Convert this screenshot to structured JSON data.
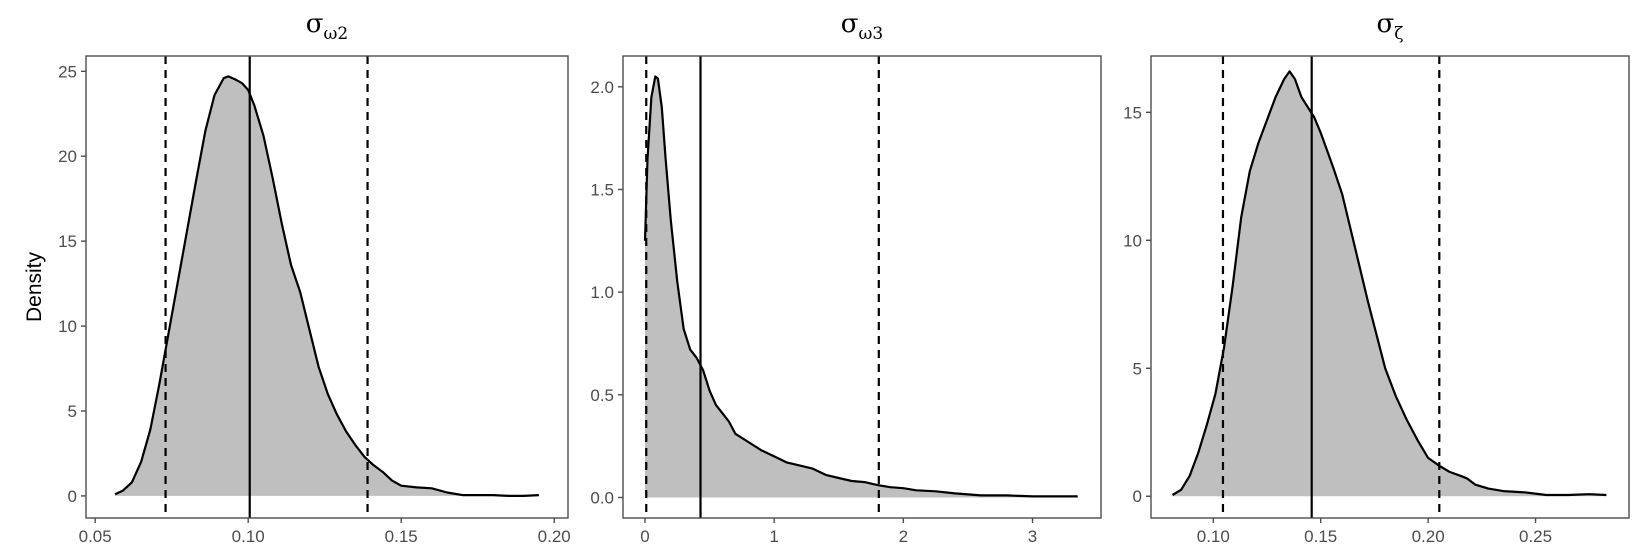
{
  "chart_data": [
    {
      "type": "area",
      "title": "σ_ω2",
      "title_main": "σ",
      "title_sub": "ω2",
      "xlabel": "",
      "ylabel": "Density",
      "xlim": [
        0.047,
        0.2045
      ],
      "ylim": [
        -1.3,
        25.9
      ],
      "xticks": [
        0.05,
        0.1,
        0.15,
        0.2
      ],
      "xtick_labels": [
        "0.05",
        "0.10",
        "0.15",
        "0.20"
      ],
      "yticks": [
        0,
        5,
        10,
        15,
        20,
        25
      ],
      "ytick_labels": [
        "0",
        "5",
        "10",
        "15",
        "20",
        "25"
      ],
      "vlines": {
        "lower_dashed": 0.073,
        "median_solid": 0.1005,
        "upper_dashed": 0.139
      },
      "x": [
        0.0565,
        0.059,
        0.062,
        0.065,
        0.068,
        0.071,
        0.074,
        0.077,
        0.08,
        0.083,
        0.086,
        0.089,
        0.092,
        0.0935,
        0.096,
        0.098,
        0.1,
        0.102,
        0.105,
        0.108,
        0.111,
        0.114,
        0.117,
        0.12,
        0.123,
        0.126,
        0.129,
        0.132,
        0.135,
        0.138,
        0.141,
        0.144,
        0.147,
        0.15,
        0.155,
        0.16,
        0.165,
        0.17,
        0.175,
        0.18,
        0.185,
        0.19,
        0.195
      ],
      "y": [
        0.1,
        0.3,
        0.8,
        2.0,
        3.9,
        6.6,
        9.6,
        12.6,
        15.6,
        18.6,
        21.5,
        23.6,
        24.6,
        24.7,
        24.5,
        24.3,
        23.9,
        23.0,
        21.2,
        18.7,
        16.0,
        13.6,
        12.0,
        9.8,
        7.6,
        6.0,
        4.8,
        3.8,
        3.0,
        2.3,
        1.8,
        1.4,
        0.9,
        0.6,
        0.5,
        0.45,
        0.2,
        0.05,
        0.05,
        0.05,
        0.0,
        0.0,
        0.05
      ]
    },
    {
      "type": "area",
      "title": "σ_ω3",
      "title_main": "σ",
      "title_sub": "ω3",
      "xlabel": "",
      "ylabel": "",
      "xlim": [
        -0.17,
        3.53
      ],
      "ylim": [
        -0.1,
        2.15
      ],
      "xticks": [
        0,
        1,
        2,
        3
      ],
      "xtick_labels": [
        "0",
        "1",
        "2",
        "3"
      ],
      "yticks": [
        0.0,
        0.5,
        1.0,
        1.5,
        2.0
      ],
      "ytick_labels": [
        "0.0",
        "0.5",
        "1.0",
        "1.5",
        "2.0"
      ],
      "vlines": {
        "lower_dashed": 0.01,
        "median_solid": 0.43,
        "upper_dashed": 1.81
      },
      "x": [
        0.0,
        0.02,
        0.05,
        0.08,
        0.1,
        0.13,
        0.16,
        0.2,
        0.25,
        0.3,
        0.35,
        0.4,
        0.45,
        0.5,
        0.55,
        0.6,
        0.65,
        0.7,
        0.8,
        0.9,
        1.0,
        1.1,
        1.2,
        1.3,
        1.4,
        1.5,
        1.6,
        1.7,
        1.8,
        1.9,
        2.0,
        2.1,
        2.25,
        2.4,
        2.6,
        2.8,
        3.0,
        3.2,
        3.35
      ],
      "y": [
        1.25,
        1.65,
        1.95,
        2.05,
        2.04,
        1.9,
        1.65,
        1.35,
        1.05,
        0.82,
        0.72,
        0.68,
        0.62,
        0.52,
        0.45,
        0.41,
        0.37,
        0.31,
        0.27,
        0.23,
        0.2,
        0.17,
        0.155,
        0.14,
        0.11,
        0.095,
        0.08,
        0.075,
        0.06,
        0.05,
        0.045,
        0.035,
        0.03,
        0.02,
        0.01,
        0.01,
        0.005,
        0.005,
        0.005
      ]
    },
    {
      "type": "area",
      "title": "σ_ζ",
      "title_main": "σ",
      "title_sub": "ζ",
      "xlabel": "",
      "ylabel": "",
      "xlim": [
        0.071,
        0.2935
      ],
      "ylim": [
        -0.85,
        17.2
      ],
      "xticks": [
        0.1,
        0.15,
        0.2,
        0.25
      ],
      "xtick_labels": [
        "0.10",
        "0.15",
        "0.20",
        "0.25"
      ],
      "yticks": [
        0,
        5,
        10,
        15
      ],
      "ytick_labels": [
        "0",
        "5",
        "10",
        "15"
      ],
      "vlines": {
        "lower_dashed": 0.1045,
        "median_solid": 0.1458,
        "upper_dashed": 0.2052
      },
      "x": [
        0.081,
        0.085,
        0.089,
        0.093,
        0.097,
        0.101,
        0.105,
        0.109,
        0.113,
        0.117,
        0.121,
        0.125,
        0.129,
        0.133,
        0.1355,
        0.138,
        0.141,
        0.144,
        0.147,
        0.15,
        0.153,
        0.156,
        0.16,
        0.164,
        0.168,
        0.172,
        0.176,
        0.18,
        0.185,
        0.19,
        0.195,
        0.2,
        0.205,
        0.21,
        0.215,
        0.218,
        0.222,
        0.228,
        0.235,
        0.245,
        0.255,
        0.265,
        0.275,
        0.283
      ],
      "y": [
        0.05,
        0.25,
        0.8,
        1.7,
        2.8,
        4.0,
        5.8,
        8.2,
        10.9,
        12.7,
        13.8,
        14.7,
        15.6,
        16.3,
        16.6,
        16.3,
        15.6,
        15.2,
        14.8,
        14.2,
        13.5,
        12.8,
        11.8,
        10.4,
        9.0,
        7.6,
        6.3,
        5.0,
        3.9,
        3.0,
        2.2,
        1.5,
        1.2,
        0.95,
        0.8,
        0.7,
        0.45,
        0.3,
        0.2,
        0.15,
        0.05,
        0.05,
        0.08,
        0.05
      ]
    }
  ],
  "panels": [
    {
      "title_main": "σ",
      "title_sub": "ω2"
    },
    {
      "title_main": "σ",
      "title_sub": "ω3"
    },
    {
      "title_main": "σ",
      "title_sub": "ζ"
    }
  ],
  "ylabel": "Density",
  "colors": {
    "fill": "#bfbfbf",
    "line": "#000000",
    "panel_border": "#4d4d4d",
    "tick_text": "#4d4d4d",
    "background": "#ffffff"
  }
}
